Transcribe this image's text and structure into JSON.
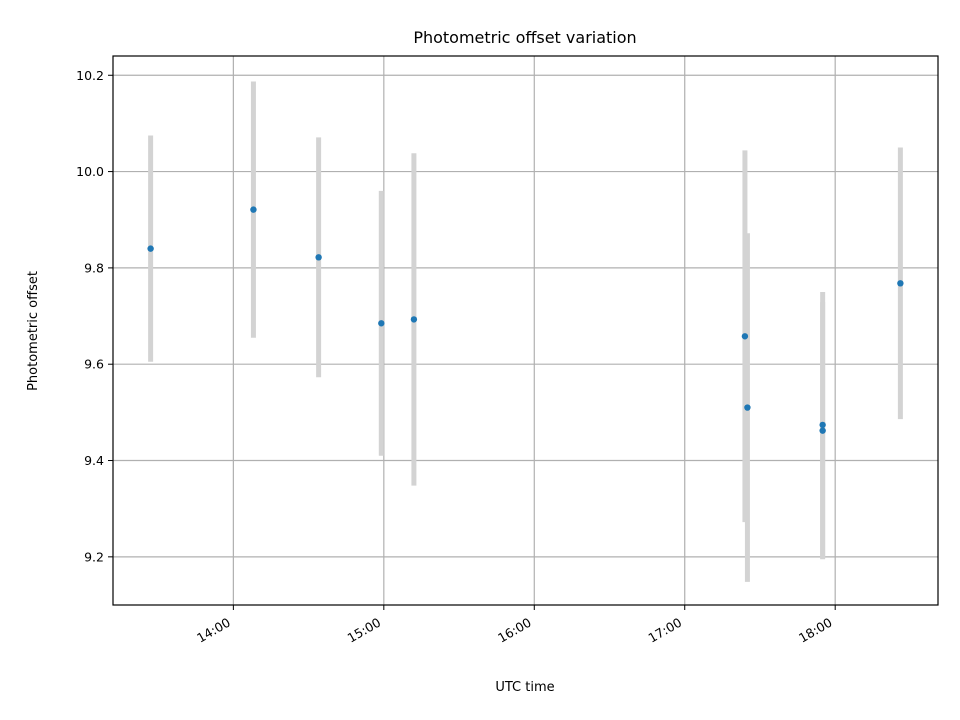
{
  "chart_data": {
    "type": "scatter",
    "title": "Photometric offset variation",
    "xlabel": "UTC time",
    "ylabel": "Photometric offset",
    "x_ticks": [
      "14:00",
      "15:00",
      "16:00",
      "17:00",
      "18:00"
    ],
    "y_ticks": [
      "9.2",
      "9.4",
      "9.6",
      "9.8",
      "10.0",
      "10.2"
    ],
    "xlim": [
      "13:12",
      "18:41"
    ],
    "ylim": [
      9.1,
      10.24
    ],
    "grid": true,
    "marker_color": "#1f77b4",
    "errorbar_color": "#d3d3d3",
    "points": [
      {
        "time": "13:27",
        "y": 9.84,
        "y_low": 9.605,
        "y_high": 10.075
      },
      {
        "time": "14:08",
        "y": 9.921,
        "y_low": 9.655,
        "y_high": 10.187
      },
      {
        "time": "14:34",
        "y": 9.822,
        "y_low": 9.573,
        "y_high": 10.071
      },
      {
        "time": "14:59",
        "y": 9.685,
        "y_low": 9.41,
        "y_high": 9.96
      },
      {
        "time": "15:12",
        "y": 9.693,
        "y_low": 9.348,
        "y_high": 10.038
      },
      {
        "time": "17:24",
        "y": 9.658,
        "y_low": 9.272,
        "y_high": 10.044
      },
      {
        "time": "17:25",
        "y": 9.51,
        "y_low": 9.148,
        "y_high": 9.872
      },
      {
        "time": "17:55",
        "y": 9.474,
        "y_low": 9.197,
        "y_high": 9.75
      },
      {
        "time": "17:55",
        "y": 9.462,
        "y_low": 9.195,
        "y_high": 9.729
      },
      {
        "time": "18:26",
        "y": 9.768,
        "y_low": 9.486,
        "y_high": 10.05
      }
    ]
  }
}
